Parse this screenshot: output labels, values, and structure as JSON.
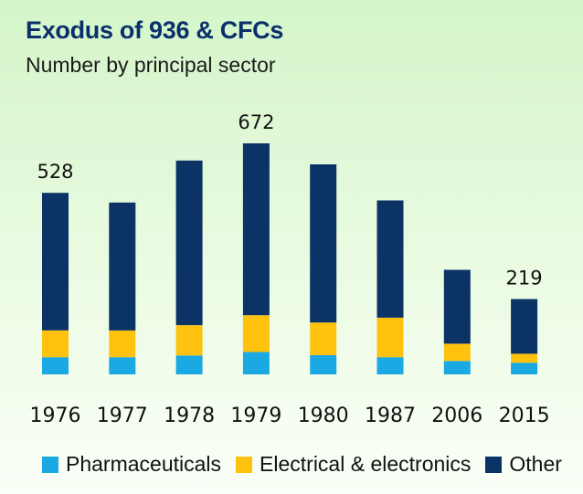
{
  "title": "Exodus of 936 & CFCs",
  "subtitle": "Number by principal sector",
  "colors": {
    "Pharmaceuticals": "#1aa9e3",
    "Electrical & electronics": "#ffc20e",
    "Other": "#0b3366"
  },
  "chart_data": {
    "type": "bar",
    "stacked": true,
    "categories": [
      "1976",
      "1977",
      "1978",
      "1979",
      "1980",
      "1987",
      "2006",
      "2015"
    ],
    "series": [
      {
        "name": "Pharmaceuticals",
        "values": [
          50,
          50,
          55,
          65,
          56,
          50,
          39,
          34
        ]
      },
      {
        "name": "Electrical & electronics",
        "values": [
          78,
          78,
          88,
          107,
          95,
          115,
          50,
          26
        ]
      },
      {
        "name": "Other",
        "values": [
          400,
          372,
          479,
          500,
          460,
          341,
          215,
          159
        ]
      }
    ],
    "totals": [
      528,
      500,
      622,
      672,
      611,
      506,
      304,
      219
    ],
    "data_labels": [
      {
        "category": "1976",
        "text": "528"
      },
      {
        "category": "1979",
        "text": "672"
      },
      {
        "category": "2015",
        "text": "219"
      }
    ],
    "ylim": [
      0,
      672
    ],
    "legend_position": "bottom",
    "grid": false
  }
}
